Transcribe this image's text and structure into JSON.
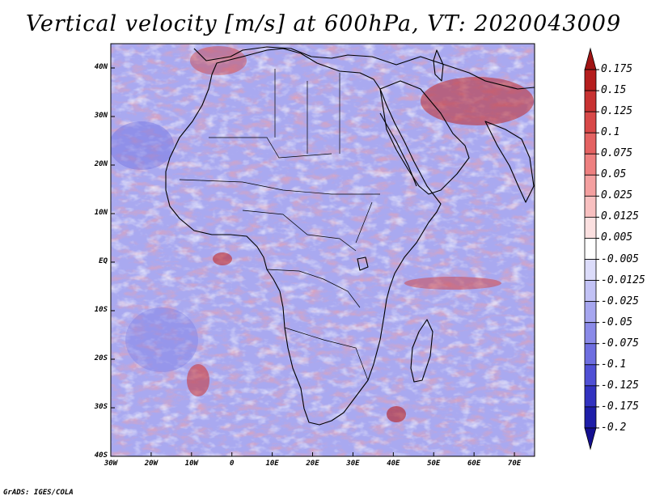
{
  "title": "Vertical velocity [m/s] at 600hPa, VT: 2020043009",
  "credit": "GrADS: IGES/COLA",
  "map": {
    "projection": "lat-lon",
    "lon_range": [
      -30,
      75
    ],
    "lat_range": [
      -40,
      45
    ],
    "lat_ticks": [
      "40N",
      "30N",
      "20N",
      "10N",
      "EQ",
      "10S",
      "20S",
      "30S",
      "40S"
    ],
    "lon_ticks": [
      "30W",
      "20W",
      "10W",
      "0",
      "10E",
      "20E",
      "30E",
      "40E",
      "50E",
      "60E",
      "70E"
    ],
    "field": "vertical velocity",
    "level": "600hPa",
    "units": "m/s",
    "valid_time": "2020043009"
  },
  "colorbar": {
    "levels": [
      "0.175",
      "0.15",
      "0.125",
      "0.1",
      "0.075",
      "0.05",
      "0.025",
      "0.0125",
      "0.005",
      "-0.005",
      "-0.0125",
      "-0.025",
      "-0.05",
      "-0.075",
      "-0.1",
      "-0.125",
      "-0.175",
      "-0.2"
    ],
    "colors": [
      "#a01414",
      "#b51e1e",
      "#c83232",
      "#d84848",
      "#e46262",
      "#ee8080",
      "#f4a0a0",
      "#f8c0c0",
      "#fbe0e0",
      "#ffffff",
      "#dcdcfa",
      "#c2c2f5",
      "#a6a6ef",
      "#8a8ae8",
      "#6e6ee0",
      "#5050d5",
      "#3232c0",
      "#1e1ea8",
      "#140f90"
    ]
  }
}
